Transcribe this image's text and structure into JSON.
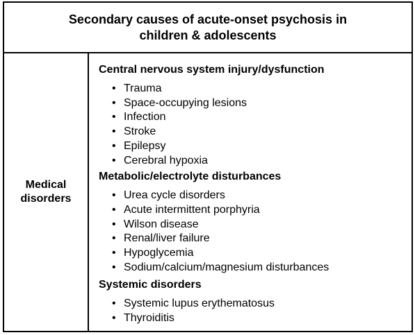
{
  "table": {
    "title": "Secondary causes of acute-onset psychosis in children & adolescents",
    "row_label": "Medical disorders",
    "sections": [
      {
        "heading": "Central nervous system injury/dysfunction",
        "items": [
          "Trauma",
          "Space-occupying lesions",
          "Infection",
          "Stroke",
          "Epilepsy",
          "Cerebral hypoxia"
        ]
      },
      {
        "heading": "Metabolic/electrolyte disturbances",
        "items": [
          "Urea cycle disorders",
          "Acute intermittent porphyria",
          "Wilson disease",
          "Renal/liver failure",
          "Hypoglycemia",
          "Sodium/calcium/magnesium disturbances"
        ]
      },
      {
        "heading": "Systemic disorders",
        "items": [
          "Systemic lupus erythematosus",
          "Thyroiditis"
        ]
      }
    ]
  }
}
